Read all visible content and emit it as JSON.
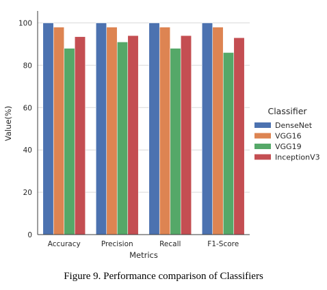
{
  "chart_data": {
    "type": "bar",
    "categories": [
      "Accuracy",
      "Precision",
      "Recall",
      "F1-Score"
    ],
    "series": [
      {
        "name": "DenseNet",
        "color": "#4c72b0",
        "values": [
          100,
          100,
          100,
          100
        ]
      },
      {
        "name": "VGG16",
        "color": "#dd8452",
        "values": [
          98,
          98,
          98,
          98
        ]
      },
      {
        "name": "VGG19",
        "color": "#55a868",
        "values": [
          88,
          91,
          88,
          86
        ]
      },
      {
        "name": "InceptionV3",
        "color": "#c44e52",
        "values": [
          93.5,
          94,
          94,
          93
        ]
      }
    ],
    "xlabel": "Metrics",
    "ylabel": "Value(%)",
    "ylim": [
      0,
      105
    ],
    "yticks": [
      0,
      20,
      40,
      60,
      80,
      100
    ],
    "grid": "horizontal",
    "legend": {
      "title": "Classifier",
      "placement": "right"
    }
  },
  "caption": "Figure 9. Performance comparison of Classifiers"
}
